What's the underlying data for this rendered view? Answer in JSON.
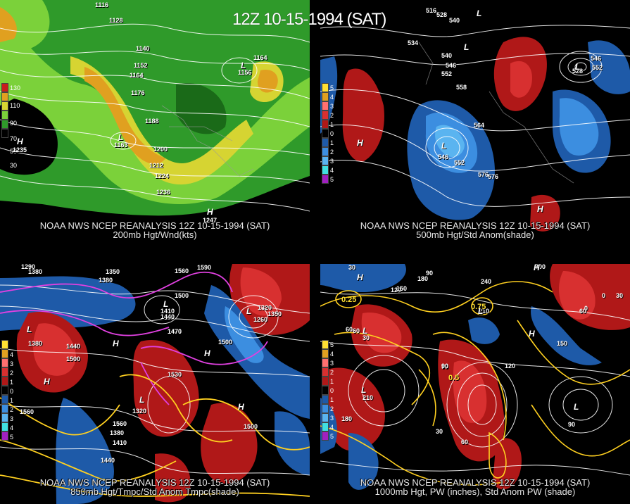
{
  "header": {
    "title": "12Z 10-15-1994 (SAT)"
  },
  "panels": [
    {
      "caption_line1": "NOAA NWS NCEP REANALYSIS 12Z 10-15-1994 (SAT)",
      "caption_line2": "200mb Hgt/Wnd(kts)",
      "colorbar_labels": [
        "130",
        "110",
        "90",
        "70",
        "50",
        "30"
      ],
      "contour_labels": [
        "1116",
        "1128",
        "1140",
        "1152",
        "1164",
        "1176",
        "1188",
        "1200",
        "1212",
        "1224",
        "1236",
        "1164",
        "1156",
        "1163",
        "1235",
        "1247"
      ],
      "center_labels": [
        "L",
        "H",
        "L",
        "H"
      ]
    },
    {
      "caption_line1": "NOAA NWS NCEP REANALYSIS 12Z 10-15-1994 (SAT)",
      "caption_line2": "500mb Hgt/Std Anom(shade)",
      "colorbar_labels": [
        "5",
        "4",
        "3",
        "2",
        "1",
        "0",
        "1",
        "2",
        "3",
        "4",
        "5"
      ],
      "contour_labels": [
        "516",
        "528",
        "540",
        "534",
        "540",
        "546",
        "552",
        "558",
        "564",
        "546",
        "552",
        "576",
        "576",
        "546",
        "552",
        "528"
      ],
      "center_labels": [
        "L",
        "L",
        "H",
        "H",
        "L",
        "L"
      ]
    },
    {
      "caption_line1": "NOAA NWS NCEP REANALYSIS 12Z 10-15-1994 (SAT)",
      "caption_line2": "850mb Hgt/Tmpc/Std Anom Tmpc(shade)",
      "colorbar_labels": [
        "4",
        "3",
        "2",
        "1",
        "0",
        "1",
        "2",
        "3",
        "4",
        "5"
      ],
      "contour_labels": [
        "1290",
        "1350",
        "1380",
        "1380",
        "1500",
        "1560",
        "1590",
        "1410",
        "1440",
        "1470",
        "1500",
        "1530",
        "1560",
        "1320",
        "1350",
        "1260",
        "1380",
        "1440",
        "1500",
        "1320",
        "1470",
        "1500",
        "1560",
        "1380",
        "1410",
        "1440"
      ],
      "center_labels": [
        "L",
        "H",
        "H",
        "H",
        "L",
        "L",
        "H",
        "L"
      ]
    },
    {
      "caption_line1": "NOAA NWS NCEP REANALYSIS 12Z 10-15-1994 (SAT)",
      "caption_line2": "1000mb Hgt, PW (inches), Std Anom PW (shade)",
      "colorbar_labels": [
        "5",
        "4",
        "3",
        "2",
        "1",
        "0",
        "1",
        "2",
        "3",
        "4",
        "5"
      ],
      "contour_labels": [
        "30",
        "60",
        "90",
        "120",
        "240",
        "300",
        "210",
        "180",
        "150",
        "90",
        "60",
        "30",
        "0",
        "30",
        "60",
        "90",
        "120",
        "150",
        "180",
        "210",
        "60",
        "0",
        "30",
        "90",
        "0.25",
        "0.5",
        "0.75"
      ],
      "center_labels": [
        "L",
        "H",
        "L",
        "H",
        "L",
        "H",
        "L"
      ]
    }
  ]
}
